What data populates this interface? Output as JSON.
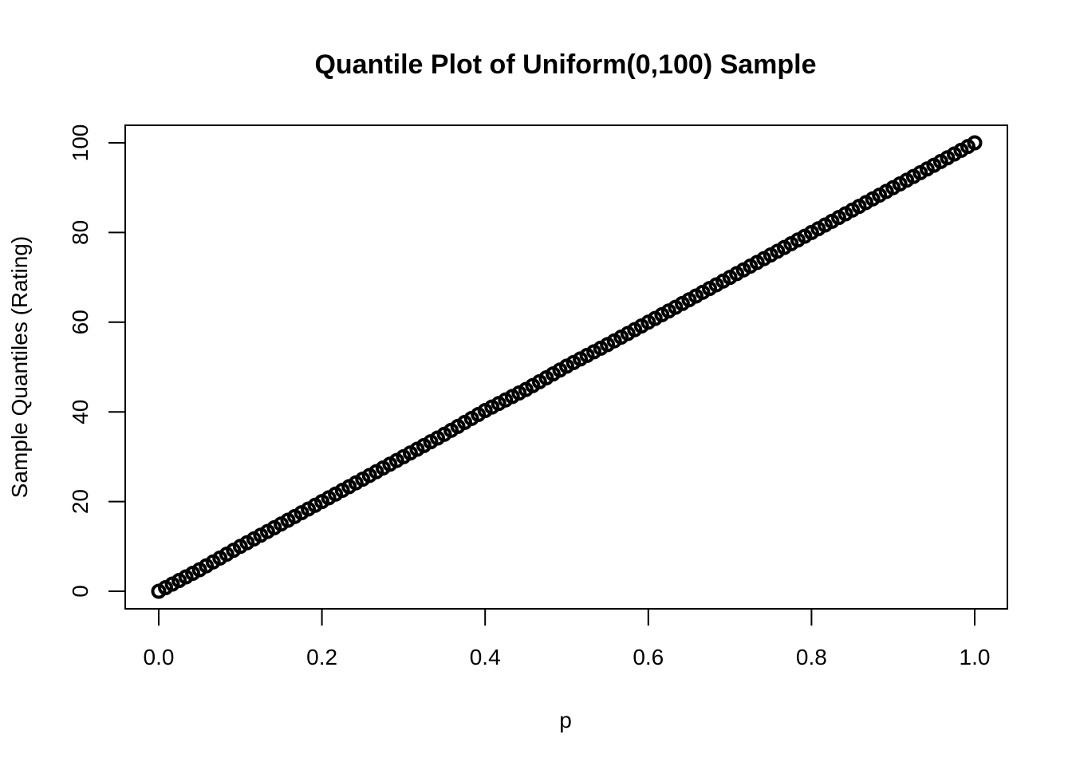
{
  "chart_data": {
    "type": "scatter",
    "title": "Quantile Plot of Uniform(0,100) Sample",
    "xlabel": "p",
    "ylabel": "Sample Quantiles (Rating)",
    "xlim": [
      0,
      1
    ],
    "ylim": [
      0,
      100
    ],
    "x_ticks": [
      "0.0",
      "0.2",
      "0.4",
      "0.6",
      "0.8",
      "1.0"
    ],
    "y_ticks": [
      "0",
      "20",
      "40",
      "60",
      "80",
      "100"
    ],
    "grid": false,
    "legend": "none",
    "point_color": "#000000",
    "series": [
      {
        "x": [
          0.0,
          0.05,
          0.1,
          0.15,
          0.2,
          0.25,
          0.3,
          0.35,
          0.4,
          0.45,
          0.5,
          0.55,
          0.6,
          0.65,
          0.7,
          0.75,
          0.8,
          0.85,
          0.9,
          0.95,
          1.0
        ],
        "y": [
          0.0,
          4.8,
          10.0,
          15.0,
          20.0,
          25.0,
          30.0,
          35.0,
          40.3,
          45.0,
          50.2,
          55.0,
          60.0,
          65.0,
          70.0,
          75.0,
          80.0,
          85.0,
          90.0,
          95.0,
          100.0
        ]
      }
    ]
  }
}
